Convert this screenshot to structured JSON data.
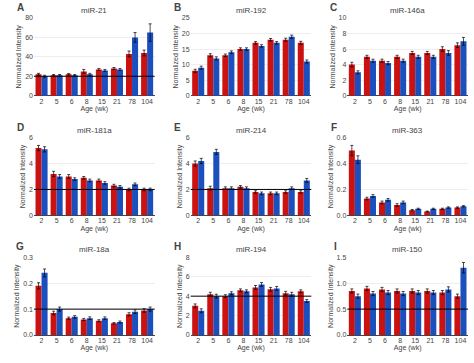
{
  "chart_data": [
    {
      "type": "bar",
      "title": "miR-21",
      "annotations": [
        "A"
      ],
      "xlabel": "Age (wk)",
      "ylabel": "Normalized Intensity",
      "categories": [
        "2",
        "5",
        "6",
        "8",
        "15",
        "21",
        "78",
        "104"
      ],
      "series": [
        {
          "color": "#cc1111",
          "values": [
            22,
            21,
            22,
            25,
            27,
            28,
            43,
            44
          ],
          "errors": [
            1,
            0.8,
            0.8,
            2,
            1,
            1,
            3,
            3
          ]
        },
        {
          "color": "#1a4fbd",
          "values": [
            20,
            21,
            21,
            22,
            26,
            27,
            60,
            65
          ],
          "errors": [
            1,
            0.8,
            0.8,
            1,
            1,
            1,
            5,
            9
          ]
        }
      ],
      "ylim": [
        0,
        80
      ],
      "yticks": [
        0,
        20,
        40,
        60,
        80
      ],
      "grid": true,
      "hline": 20
    },
    {
      "type": "bar",
      "title": "miR-192",
      "annotations": [
        "B"
      ],
      "xlabel": "Age (wk)",
      "ylabel": "Normalized Intensity",
      "categories": [
        "2",
        "5",
        "6",
        "8",
        "15",
        "21",
        "78",
        "104"
      ],
      "series": [
        {
          "color": "#cc1111",
          "values": [
            8,
            13,
            13,
            15,
            17,
            18,
            18,
            17
          ],
          "errors": [
            0.5,
            0.5,
            0.4,
            0.4,
            0.4,
            0.4,
            0.5,
            0.5
          ]
        },
        {
          "color": "#1a4fbd",
          "values": [
            9,
            12,
            14,
            15,
            16,
            17,
            19,
            11
          ],
          "errors": [
            0.5,
            0.5,
            0.4,
            0.4,
            0.4,
            0.4,
            0.5,
            0.5
          ]
        }
      ],
      "ylim": [
        0,
        25
      ],
      "yticks": [
        0,
        5,
        10,
        15,
        20,
        25
      ],
      "grid": true
    },
    {
      "type": "bar",
      "title": "miR-146a",
      "annotations": [
        "C"
      ],
      "xlabel": "Age (wk)",
      "ylabel": "Normalized Intensity",
      "categories": [
        "2",
        "5",
        "6",
        "8",
        "15",
        "21",
        "78",
        "104"
      ],
      "series": [
        {
          "color": "#cc1111",
          "values": [
            4,
            5,
            4.5,
            5,
            5.5,
            5.5,
            6,
            6.5
          ],
          "errors": [
            0.3,
            0.2,
            0.2,
            0.2,
            0.2,
            0.2,
            0.3,
            0.3
          ]
        },
        {
          "color": "#1a4fbd",
          "values": [
            3,
            4.5,
            4.2,
            4.5,
            5,
            5,
            5.5,
            7
          ],
          "errors": [
            0.2,
            0.2,
            0.2,
            0.2,
            0.2,
            0.2,
            0.3,
            0.5
          ]
        }
      ],
      "ylim": [
        0,
        10
      ],
      "yticks": [
        0,
        2,
        4,
        6,
        8,
        10
      ],
      "grid": true
    },
    {
      "type": "bar",
      "title": "miR-181a",
      "annotations": [
        "D"
      ],
      "xlabel": "Age (wk)",
      "ylabel": "Normalized Intensity",
      "categories": [
        "2",
        "5",
        "6",
        "8",
        "15",
        "21",
        "78",
        "104"
      ],
      "series": [
        {
          "color": "#cc1111",
          "values": [
            5.2,
            3.2,
            3.0,
            2.9,
            2.7,
            2.3,
            2.0,
            2.0
          ],
          "errors": [
            0.2,
            0.2,
            0.15,
            0.1,
            0.1,
            0.1,
            0.1,
            0.1
          ]
        },
        {
          "color": "#1a4fbd",
          "values": [
            5.1,
            3.0,
            2.8,
            2.7,
            2.5,
            2.2,
            2.4,
            2.0
          ],
          "errors": [
            0.2,
            0.15,
            0.1,
            0.1,
            0.1,
            0.1,
            0.1,
            0.1
          ]
        }
      ],
      "ylim": [
        0,
        6
      ],
      "yticks": [
        0,
        2,
        4,
        6
      ],
      "grid": true,
      "hline": 2
    },
    {
      "type": "bar",
      "title": "miR-214",
      "annotations": [
        "E"
      ],
      "xlabel": "Age (wk)",
      "ylabel": "Normalized Intensity",
      "categories": [
        "2",
        "5",
        "6",
        "8",
        "15",
        "21",
        "78",
        "104"
      ],
      "series": [
        {
          "color": "#cc1111",
          "values": [
            4.0,
            2.1,
            2.1,
            2.2,
            1.8,
            1.7,
            1.8,
            1.8
          ],
          "errors": [
            0.2,
            0.15,
            0.1,
            0.1,
            0.1,
            0.1,
            0.1,
            0.1
          ]
        },
        {
          "color": "#1a4fbd",
          "values": [
            4.2,
            4.9,
            2.1,
            2.1,
            1.7,
            1.7,
            2.1,
            2.7
          ],
          "errors": [
            0.2,
            0.2,
            0.1,
            0.1,
            0.1,
            0.1,
            0.1,
            0.15
          ]
        }
      ],
      "ylim": [
        0,
        6
      ],
      "yticks": [
        0,
        2,
        4,
        6
      ],
      "grid": true,
      "hline": 2
    },
    {
      "type": "bar",
      "title": "miR-363",
      "annotations": [
        "F"
      ],
      "xlabel": "Age (wk)",
      "ylabel": "Normalized Intensity",
      "categories": [
        "2",
        "5",
        "6",
        "8",
        "15",
        "21",
        "78",
        "104"
      ],
      "series": [
        {
          "color": "#cc1111",
          "values": [
            0.5,
            0.13,
            0.1,
            0.08,
            0.04,
            0.03,
            0.05,
            0.06
          ],
          "errors": [
            0.04,
            0.01,
            0.01,
            0.01,
            0.005,
            0.003,
            0.005,
            0.005
          ]
        },
        {
          "color": "#1a4fbd",
          "values": [
            0.43,
            0.15,
            0.12,
            0.1,
            0.05,
            0.05,
            0.06,
            0.07
          ],
          "errors": [
            0.03,
            0.01,
            0.01,
            0.01,
            0.005,
            0.005,
            0.005,
            0.005
          ]
        }
      ],
      "ylim": [
        0,
        0.6
      ],
      "yticks": [
        {
          "value": 0,
          "label": "0.0"
        },
        0.2,
        0.4,
        0.6
      ],
      "grid": true
    },
    {
      "type": "bar",
      "title": "miR-18a",
      "annotations": [
        "G"
      ],
      "xlabel": "Age (wk)",
      "ylabel": "Normalized Intensity",
      "categories": [
        "2",
        "5",
        "6",
        "8",
        "15",
        "21",
        "78",
        "104"
      ],
      "series": [
        {
          "color": "#cc1111",
          "values": [
            0.19,
            0.085,
            0.065,
            0.06,
            0.055,
            0.045,
            0.08,
            0.095
          ],
          "errors": [
            0.012,
            0.007,
            0.004,
            0.004,
            0.004,
            0.003,
            0.006,
            0.007
          ]
        },
        {
          "color": "#1a4fbd",
          "values": [
            0.24,
            0.1,
            0.07,
            0.065,
            0.065,
            0.05,
            0.09,
            0.1
          ],
          "errors": [
            0.015,
            0.008,
            0.005,
            0.005,
            0.005,
            0.004,
            0.007,
            0.008
          ]
        }
      ],
      "ylim": [
        0,
        0.3
      ],
      "yticks": [
        {
          "value": 0,
          "label": "0.0"
        },
        0.1,
        0.2,
        0.3
      ],
      "grid": true,
      "hline": 0.1
    },
    {
      "type": "bar",
      "title": "miR-194",
      "annotations": [
        "H"
      ],
      "xlabel": "Age (wk)",
      "ylabel": "Normalized Intensity",
      "categories": [
        "2",
        "5",
        "6",
        "8",
        "15",
        "21",
        "78",
        "104"
      ],
      "series": [
        {
          "color": "#cc1111",
          "values": [
            3.0,
            4.2,
            4.0,
            4.6,
            4.9,
            4.7,
            4.3,
            4.5
          ],
          "errors": [
            0.2,
            0.2,
            0.15,
            0.15,
            0.2,
            0.2,
            0.2,
            0.15
          ]
        },
        {
          "color": "#1a4fbd",
          "values": [
            2.5,
            4.0,
            4.3,
            4.5,
            5.2,
            4.8,
            4.2,
            3.5
          ],
          "errors": [
            0.2,
            0.2,
            0.15,
            0.15,
            0.2,
            0.2,
            0.2,
            0.15
          ]
        }
      ],
      "ylim": [
        0,
        8
      ],
      "yticks": [
        0,
        2,
        4,
        6,
        8
      ],
      "grid": true,
      "hline": 4
    },
    {
      "type": "bar",
      "title": "miR-150",
      "annotations": [
        "I"
      ],
      "xlabel": "Age (wk)",
      "ylabel": "Normalized Intensity",
      "categories": [
        "2",
        "5",
        "6",
        "8",
        "15",
        "21",
        "78",
        "104"
      ],
      "series": [
        {
          "color": "#cc1111",
          "values": [
            0.85,
            0.9,
            0.88,
            0.85,
            0.85,
            0.85,
            0.82,
            0.75
          ],
          "errors": [
            0.04,
            0.04,
            0.04,
            0.04,
            0.04,
            0.04,
            0.04,
            0.04
          ]
        },
        {
          "color": "#1a4fbd",
          "values": [
            0.75,
            0.8,
            0.82,
            0.8,
            0.82,
            0.82,
            0.88,
            1.3
          ],
          "errors": [
            0.04,
            0.04,
            0.04,
            0.04,
            0.04,
            0.04,
            0.05,
            0.1
          ]
        }
      ],
      "ylim": [
        0,
        1.5
      ],
      "yticks": [
        {
          "value": 0,
          "label": "0.0"
        },
        0.5,
        {
          "value": 1,
          "label": "1.0"
        },
        1.5
      ],
      "grid": true,
      "hline": 0.5
    }
  ]
}
